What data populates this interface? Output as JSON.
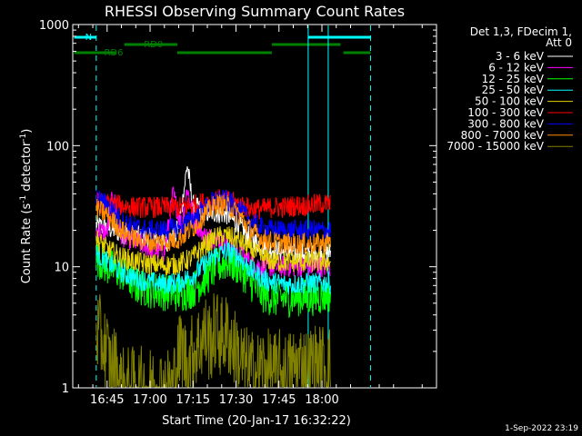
{
  "chart_data": {
    "type": "line",
    "title": "RHESSI Observing Summary Count Rates",
    "xlabel": "Start Time (20-Jan-17 16:32:22)",
    "ylabel_main": "Count Rate (s",
    "ylabel_sup1": "-1",
    "ylabel_mid": " detector",
    "ylabel_sup2": "-1",
    "ylabel_end": ")",
    "y_scale": "log",
    "ylim": [
      1,
      1000
    ],
    "xlim_min": [
      -12,
      115
    ],
    "y_ticks": [
      {
        "value": 1,
        "label": "1"
      },
      {
        "value": 10,
        "label": "10"
      },
      {
        "value": 100,
        "label": "100"
      },
      {
        "value": 1000,
        "label": "1000"
      }
    ],
    "x_ticks": [
      {
        "min": 0,
        "label": "16:45"
      },
      {
        "min": 15,
        "label": "17:00"
      },
      {
        "min": 30,
        "label": "17:15"
      },
      {
        "min": 45,
        "label": "17:30"
      },
      {
        "min": 60,
        "label": "17:45"
      },
      {
        "min": 75,
        "label": "18:00"
      }
    ],
    "legend_title": [
      "Det 1,3, FDecim 1,",
      "Att 0"
    ],
    "legend_position": "right",
    "data_range_min": [
      -3.8,
      78
    ],
    "series": [
      {
        "name": "3 - 6 keV",
        "color": "#ffffff",
        "points": [
          [
            -3.8,
            22
          ],
          [
            0,
            21
          ],
          [
            5,
            19
          ],
          [
            10,
            18
          ],
          [
            15,
            17
          ],
          [
            20,
            16
          ],
          [
            24,
            18
          ],
          [
            26,
            30
          ],
          [
            28,
            70
          ],
          [
            29,
            45
          ],
          [
            30,
            32
          ],
          [
            34,
            28
          ],
          [
            38,
            28
          ],
          [
            42,
            27
          ],
          [
            46,
            22
          ],
          [
            50,
            17
          ],
          [
            54,
            15
          ],
          [
            58,
            14
          ],
          [
            62,
            13
          ],
          [
            66,
            13
          ],
          [
            70,
            13
          ],
          [
            74,
            13
          ],
          [
            78,
            13
          ]
        ]
      },
      {
        "name": "6 - 12 keV",
        "color": "#ff00ff",
        "points": [
          [
            -3.8,
            20
          ],
          [
            0,
            19
          ],
          [
            2,
            40
          ],
          [
            5,
            18
          ],
          [
            10,
            16
          ],
          [
            15,
            14
          ],
          [
            20,
            13
          ],
          [
            23,
            40
          ],
          [
            26,
            22
          ],
          [
            28,
            45
          ],
          [
            30,
            25
          ],
          [
            34,
            18
          ],
          [
            38,
            17
          ],
          [
            42,
            15
          ],
          [
            46,
            13
          ],
          [
            50,
            11
          ],
          [
            54,
            10
          ],
          [
            58,
            10
          ],
          [
            62,
            10
          ],
          [
            66,
            10
          ],
          [
            70,
            10
          ],
          [
            74,
            10
          ],
          [
            78,
            10
          ]
        ]
      },
      {
        "name": "12 - 25 keV",
        "color": "#00ff00",
        "points": [
          [
            -3.8,
            12
          ],
          [
            0,
            10
          ],
          [
            5,
            9
          ],
          [
            10,
            7
          ],
          [
            15,
            6.5
          ],
          [
            20,
            6.2
          ],
          [
            25,
            6
          ],
          [
            30,
            6.5
          ],
          [
            34,
            8
          ],
          [
            38,
            10
          ],
          [
            42,
            11
          ],
          [
            46,
            10
          ],
          [
            50,
            7.5
          ],
          [
            54,
            6
          ],
          [
            58,
            5.5
          ],
          [
            62,
            5.5
          ],
          [
            66,
            5.6
          ],
          [
            70,
            5.6
          ],
          [
            74,
            5.7
          ],
          [
            78,
            6
          ]
        ]
      },
      {
        "name": "25 - 50 keV",
        "color": "#00ffff",
        "points": [
          [
            -3.8,
            13
          ],
          [
            0,
            11
          ],
          [
            5,
            9
          ],
          [
            10,
            8
          ],
          [
            15,
            7.5
          ],
          [
            20,
            7.2
          ],
          [
            25,
            7.4
          ],
          [
            30,
            8.5
          ],
          [
            34,
            10.5
          ],
          [
            38,
            12.5
          ],
          [
            42,
            13.5
          ],
          [
            46,
            12
          ],
          [
            50,
            9.5
          ],
          [
            54,
            8
          ],
          [
            58,
            7.4
          ],
          [
            62,
            7.2
          ],
          [
            66,
            7.2
          ],
          [
            70,
            7.3
          ],
          [
            74,
            7.3
          ],
          [
            78,
            7.4
          ]
        ]
      },
      {
        "name": "50 - 100 keV",
        "color": "#e6d200",
        "points": [
          [
            -3.8,
            17
          ],
          [
            0,
            14
          ],
          [
            5,
            12
          ],
          [
            10,
            11
          ],
          [
            15,
            10.5
          ],
          [
            20,
            10.3
          ],
          [
            25,
            10.5
          ],
          [
            30,
            12
          ],
          [
            34,
            15
          ],
          [
            38,
            17.5
          ],
          [
            42,
            18
          ],
          [
            46,
            16.5
          ],
          [
            50,
            14
          ],
          [
            54,
            12
          ],
          [
            58,
            11
          ],
          [
            62,
            11
          ],
          [
            66,
            11
          ],
          [
            70,
            11
          ],
          [
            74,
            11
          ],
          [
            78,
            11
          ]
        ]
      },
      {
        "name": "100 - 300 keV",
        "color": "#ff0000",
        "points": [
          [
            -3.8,
            34
          ],
          [
            0,
            33
          ],
          [
            5,
            32
          ],
          [
            10,
            31
          ],
          [
            15,
            31
          ],
          [
            20,
            31
          ],
          [
            25,
            31
          ],
          [
            30,
            32
          ],
          [
            34,
            34
          ],
          [
            38,
            36
          ],
          [
            42,
            35
          ],
          [
            46,
            33
          ],
          [
            50,
            30
          ],
          [
            54,
            30
          ],
          [
            58,
            31
          ],
          [
            62,
            31
          ],
          [
            66,
            32
          ],
          [
            70,
            32
          ],
          [
            74,
            33
          ],
          [
            78,
            33
          ]
        ]
      },
      {
        "name": "300 - 800 keV",
        "color": "#0000ff",
        "points": [
          [
            -3.8,
            36
          ],
          [
            0,
            33
          ],
          [
            5,
            24
          ],
          [
            10,
            21
          ],
          [
            15,
            20
          ],
          [
            20,
            20
          ],
          [
            25,
            21
          ],
          [
            30,
            25
          ],
          [
            34,
            30
          ],
          [
            38,
            36
          ],
          [
            42,
            35
          ],
          [
            46,
            30
          ],
          [
            50,
            24
          ],
          [
            54,
            21
          ],
          [
            58,
            20
          ],
          [
            62,
            20
          ],
          [
            66,
            20
          ],
          [
            70,
            20
          ],
          [
            74,
            20
          ],
          [
            78,
            20
          ]
        ]
      },
      {
        "name": "800 - 7000 keV",
        "color": "#ff8c00",
        "points": [
          [
            -3.8,
            30
          ],
          [
            0,
            27
          ],
          [
            5,
            20
          ],
          [
            10,
            17
          ],
          [
            15,
            16
          ],
          [
            20,
            16
          ],
          [
            25,
            17
          ],
          [
            30,
            21
          ],
          [
            34,
            27
          ],
          [
            38,
            33
          ],
          [
            42,
            32
          ],
          [
            46,
            27
          ],
          [
            50,
            20
          ],
          [
            54,
            17
          ],
          [
            58,
            16
          ],
          [
            62,
            15.5
          ],
          [
            66,
            15.5
          ],
          [
            70,
            15.5
          ],
          [
            74,
            15.5
          ],
          [
            78,
            16
          ]
        ]
      },
      {
        "name": "7000 - 15000 keV",
        "color": "#808000",
        "points": [
          [
            -3.8,
            3
          ],
          [
            -2,
            2.5
          ],
          [
            0,
            2
          ],
          [
            1,
            1.5
          ],
          [
            3,
            1.5
          ],
          [
            5,
            1
          ],
          [
            23,
            1
          ],
          [
            24,
            1.5
          ],
          [
            26,
            2.2
          ],
          [
            28,
            1.5
          ],
          [
            30,
            2
          ],
          [
            32,
            2.3
          ],
          [
            34,
            2.8
          ],
          [
            36,
            2.4
          ],
          [
            38,
            3
          ],
          [
            40,
            2.6
          ],
          [
            42,
            2.8
          ],
          [
            44,
            2.2
          ],
          [
            46,
            1.8
          ],
          [
            48,
            1.5
          ],
          [
            50,
            1.4
          ],
          [
            52,
            1.3
          ],
          [
            54,
            1.5
          ],
          [
            56,
            1.4
          ],
          [
            58,
            1.3
          ],
          [
            60,
            1.4
          ],
          [
            62,
            1.3
          ],
          [
            64,
            1.4
          ],
          [
            66,
            1.5
          ],
          [
            68,
            1.6
          ],
          [
            70,
            1.4
          ],
          [
            72,
            1.6
          ],
          [
            74,
            1.5
          ],
          [
            76,
            1.6
          ],
          [
            78,
            1.5
          ]
        ]
      }
    ],
    "vertical_lines": [
      {
        "min": -3.8,
        "color": "#00ffff",
        "style": "dashed"
      },
      {
        "min": 70.2,
        "color": "#00ffff",
        "style": "solid"
      },
      {
        "min": 77.2,
        "color": "#00ffff",
        "style": "solid"
      },
      {
        "min": 92,
        "color": "#00ffff",
        "style": "dashed"
      }
    ],
    "flag_bars": [
      {
        "label": "N",
        "color": "#00ffff",
        "level": 1,
        "segments": [
          [
            -11.5,
            -3.8
          ],
          [
            70.2,
            92
          ]
        ]
      },
      {
        "label": "RD0",
        "color": "#008000",
        "level": 2,
        "segments": [
          [
            6,
            24.5
          ],
          [
            57.5,
            81.5
          ]
        ]
      },
      {
        "label": "RD6",
        "color": "#008000",
        "level": 3,
        "segments": [
          [
            -11.5,
            3
          ],
          [
            24.5,
            57.5
          ],
          [
            82.5,
            92
          ]
        ]
      }
    ]
  },
  "footer_date": "1-Sep-2022 23:19"
}
